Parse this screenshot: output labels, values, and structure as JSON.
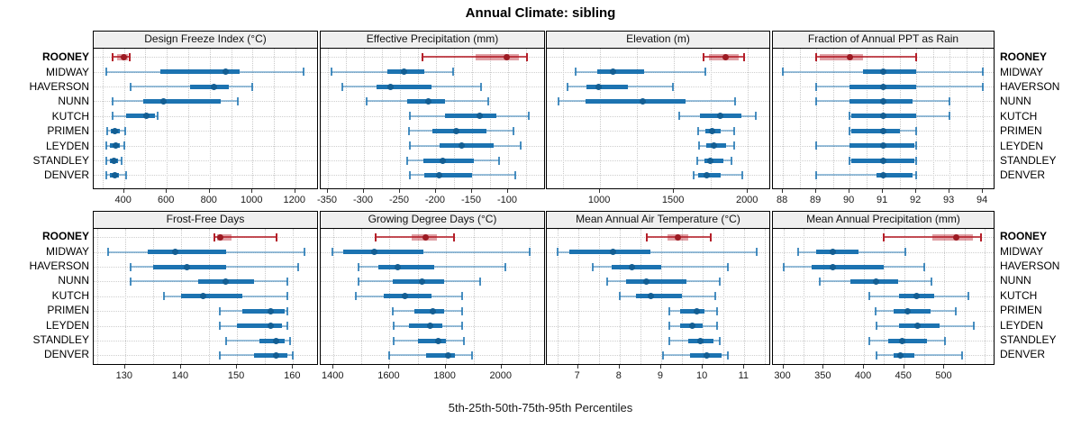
{
  "title": "Annual Climate: sibling",
  "caption": "5th-25th-50th-75th-95th Percentiles",
  "stations": [
    "ROONEY",
    "MIDWAY",
    "HAVERSON",
    "NUNN",
    "KUTCH",
    "PRIMEN",
    "LEYDEN",
    "STANDLEY",
    "DENVER"
  ],
  "highlight_station": "ROONEY",
  "percentiles": [
    5,
    25,
    50,
    75,
    95
  ],
  "colors": {
    "highlight": "#b5202a",
    "highlight_dot": "#9c1b23",
    "normal": "#1c73b1",
    "normal_dot": "#135e93",
    "grid": "#c9c9c9",
    "strip_bg": "#efefef",
    "border": "#000000"
  },
  "chart_data": [
    {
      "type": "percentile-range",
      "title": "Design Freeze Index (°C)",
      "domain": [
        258,
        1302
      ],
      "ticks": [
        400,
        600,
        800,
        1000,
        1200
      ],
      "minor_step": 100,
      "series": [
        {
          "name": "ROONEY",
          "values": [
            345,
            368,
            400,
            416,
            426
          ]
        },
        {
          "name": "MIDWAY",
          "values": [
            315,
            570,
            875,
            940,
            1240
          ]
        },
        {
          "name": "HAVERSON",
          "values": [
            430,
            710,
            820,
            890,
            1000
          ]
        },
        {
          "name": "NUNN",
          "values": [
            345,
            490,
            585,
            850,
            930
          ]
        },
        {
          "name": "KUTCH",
          "values": [
            345,
            410,
            505,
            545,
            555
          ]
        },
        {
          "name": "PRIMEN",
          "values": [
            320,
            336,
            358,
            380,
            407
          ]
        },
        {
          "name": "LEYDEN",
          "values": [
            315,
            335,
            360,
            381,
            403
          ]
        },
        {
          "name": "STANDLEY",
          "values": [
            318,
            332,
            354,
            372,
            390
          ]
        },
        {
          "name": "DENVER",
          "values": [
            316,
            335,
            357,
            378,
            410
          ]
        }
      ]
    },
    {
      "type": "percentile-range",
      "title": "Effective Precipitation (mm)",
      "domain": [
        -360,
        -50
      ],
      "ticks": [
        -350,
        -300,
        -250,
        -200,
        -150,
        -100
      ],
      "minor_step": 25,
      "series": [
        {
          "name": "ROONEY",
          "values": [
            -219,
            -145,
            -102,
            -85,
            -74
          ]
        },
        {
          "name": "MIDWAY",
          "values": [
            -345,
            -268,
            -245,
            -216,
            -176
          ]
        },
        {
          "name": "HAVERSON",
          "values": [
            -330,
            -283,
            -263,
            -206,
            -137
          ]
        },
        {
          "name": "NUNN",
          "values": [
            -296,
            -240,
            -211,
            -188,
            -127
          ]
        },
        {
          "name": "KUTCH",
          "values": [
            -236,
            -187,
            -140,
            -116,
            -71
          ]
        },
        {
          "name": "PRIMEN",
          "values": [
            -238,
            -205,
            -172,
            -130,
            -92
          ]
        },
        {
          "name": "LEYDEN",
          "values": [
            -236,
            -195,
            -165,
            -120,
            -82
          ]
        },
        {
          "name": "STANDLEY",
          "values": [
            -240,
            -218,
            -191,
            -148,
            -112
          ]
        },
        {
          "name": "DENVER",
          "values": [
            -236,
            -216,
            -196,
            -150,
            -90
          ]
        }
      ]
    },
    {
      "type": "percentile-range",
      "title": "Elevation (m)",
      "domain": [
        640,
        2145
      ],
      "ticks": [
        1000,
        1500,
        2000
      ],
      "minor_step": 250,
      "series": [
        {
          "name": "ROONEY",
          "values": [
            1700,
            1737,
            1850,
            1935,
            1977
          ]
        },
        {
          "name": "MIDWAY",
          "values": [
            835,
            980,
            1085,
            1300,
            1710
          ]
        },
        {
          "name": "HAVERSON",
          "values": [
            780,
            910,
            990,
            1190,
            1495
          ]
        },
        {
          "name": "NUNN",
          "values": [
            720,
            900,
            1290,
            1580,
            1915
          ]
        },
        {
          "name": "KUTCH",
          "values": [
            1535,
            1675,
            1815,
            1955,
            2055
          ]
        },
        {
          "name": "PRIMEN",
          "values": [
            1665,
            1715,
            1760,
            1815,
            1905
          ]
        },
        {
          "name": "LEYDEN",
          "values": [
            1670,
            1720,
            1770,
            1855,
            1910
          ]
        },
        {
          "name": "STANDLEY",
          "values": [
            1660,
            1705,
            1745,
            1835,
            1890
          ]
        },
        {
          "name": "DENVER",
          "values": [
            1634,
            1664,
            1724,
            1814,
            1960
          ]
        }
      ]
    },
    {
      "type": "percentile-range",
      "title": "Fraction of Annual PPT as Rain",
      "domain": [
        87.7,
        94.32
      ],
      "ticks": [
        88,
        89,
        90,
        91,
        92,
        93,
        94
      ],
      "minor_step": 0.5,
      "series": [
        {
          "name": "ROONEY",
          "values": [
            89,
            89.1,
            90,
            90.4,
            92
          ]
        },
        {
          "name": "MIDWAY",
          "values": [
            88,
            90.4,
            91,
            92,
            94
          ]
        },
        {
          "name": "HAVERSON",
          "values": [
            89,
            90,
            91,
            92,
            94
          ]
        },
        {
          "name": "NUNN",
          "values": [
            89,
            90,
            91,
            91.9,
            93
          ]
        },
        {
          "name": "KUTCH",
          "values": [
            90,
            90.05,
            91,
            92,
            93
          ]
        },
        {
          "name": "PRIMEN",
          "values": [
            90,
            90.05,
            91,
            91.5,
            92
          ]
        },
        {
          "name": "LEYDEN",
          "values": [
            89,
            90,
            91,
            91.95,
            92
          ]
        },
        {
          "name": "STANDLEY",
          "values": [
            90,
            90.05,
            91,
            91.95,
            92
          ]
        },
        {
          "name": "DENVER",
          "values": [
            89,
            90.8,
            91,
            91.9,
            92
          ]
        }
      ]
    },
    {
      "type": "percentile-range",
      "title": "Frost-Free Days",
      "domain": [
        124.4,
        164.3
      ],
      "ticks": [
        130,
        140,
        150,
        160
      ],
      "minor_step": 5,
      "series": [
        {
          "name": "ROONEY",
          "values": [
            146,
            146.5,
            147,
            149,
            157
          ]
        },
        {
          "name": "MIDWAY",
          "values": [
            127,
            134,
            139,
            148,
            162
          ]
        },
        {
          "name": "HAVERSON",
          "values": [
            131,
            135,
            141,
            148,
            161
          ]
        },
        {
          "name": "NUNN",
          "values": [
            131,
            143,
            148,
            153,
            159
          ]
        },
        {
          "name": "KUTCH",
          "values": [
            137,
            140,
            144,
            151,
            159
          ]
        },
        {
          "name": "PRIMEN",
          "values": [
            147,
            151,
            156,
            158.5,
            159
          ]
        },
        {
          "name": "LEYDEN",
          "values": [
            147,
            150,
            156,
            158,
            159
          ]
        },
        {
          "name": "STANDLEY",
          "values": [
            148,
            154,
            157,
            158.5,
            159.5
          ]
        },
        {
          "name": "DENVER",
          "values": [
            147,
            153,
            157,
            159,
            160
          ]
        }
      ]
    },
    {
      "type": "percentile-range",
      "title": "Growing Degree Days (°C)",
      "domain": [
        1354,
        2152
      ],
      "ticks": [
        1400,
        1600,
        1800,
        2000
      ],
      "minor_step": 100,
      "series": [
        {
          "name": "ROONEY",
          "values": [
            1550,
            1680,
            1730,
            1770,
            1830
          ]
        },
        {
          "name": "MIDWAY",
          "values": [
            1395,
            1435,
            1545,
            1720,
            2100
          ]
        },
        {
          "name": "HAVERSON",
          "values": [
            1490,
            1560,
            1630,
            1760,
            2015
          ]
        },
        {
          "name": "NUNN",
          "values": [
            1490,
            1610,
            1715,
            1795,
            1925
          ]
        },
        {
          "name": "KUTCH",
          "values": [
            1480,
            1580,
            1655,
            1750,
            1860
          ]
        },
        {
          "name": "PRIMEN",
          "values": [
            1610,
            1690,
            1755,
            1795,
            1860
          ]
        },
        {
          "name": "LEYDEN",
          "values": [
            1615,
            1670,
            1745,
            1790,
            1860
          ]
        },
        {
          "name": "STANDLEY",
          "values": [
            1615,
            1700,
            1775,
            1800,
            1865
          ]
        },
        {
          "name": "DENVER",
          "values": [
            1600,
            1730,
            1808,
            1835,
            1895
          ]
        }
      ]
    },
    {
      "type": "percentile-range",
      "title": "Mean Annual Air Temperature (°C)",
      "domain": [
        6.25,
        11.6
      ],
      "ticks": [
        7,
        8,
        9,
        10,
        11
      ],
      "minor_step": 0.5,
      "series": [
        {
          "name": "ROONEY",
          "values": [
            8.65,
            9.15,
            9.4,
            9.65,
            10.2
          ]
        },
        {
          "name": "MIDWAY",
          "values": [
            6.5,
            6.8,
            7.85,
            8.75,
            11.3
          ]
        },
        {
          "name": "HAVERSON",
          "values": [
            7.35,
            7.8,
            8.3,
            9.0,
            10.6
          ]
        },
        {
          "name": "NUNN",
          "values": [
            7.7,
            8.15,
            8.65,
            9.6,
            10.4
          ]
        },
        {
          "name": "KUTCH",
          "values": [
            8.0,
            8.4,
            8.75,
            9.5,
            10.3
          ]
        },
        {
          "name": "PRIMEN",
          "values": [
            9.2,
            9.45,
            9.85,
            10.05,
            10.35
          ]
        },
        {
          "name": "LEYDEN",
          "values": [
            9.2,
            9.45,
            9.75,
            10.0,
            10.35
          ]
        },
        {
          "name": "STANDLEY",
          "values": [
            9.2,
            9.65,
            9.95,
            10.25,
            10.4
          ]
        },
        {
          "name": "DENVER",
          "values": [
            9.05,
            9.7,
            10.1,
            10.45,
            10.6
          ]
        }
      ]
    },
    {
      "type": "percentile-range",
      "title": "Mean Annual Precipitation (mm)",
      "domain": [
        287,
        561
      ],
      "ticks": [
        300,
        350,
        400,
        450,
        500
      ],
      "minor_step": 25,
      "series": [
        {
          "name": "ROONEY",
          "values": [
            425,
            485,
            515,
            535,
            545
          ]
        },
        {
          "name": "MIDWAY",
          "values": [
            318,
            341,
            361,
            393,
            451
          ]
        },
        {
          "name": "HAVERSON",
          "values": [
            300,
            335,
            361,
            425,
            475
          ]
        },
        {
          "name": "NUNN",
          "values": [
            345,
            383,
            415,
            443,
            484
          ]
        },
        {
          "name": "KUTCH",
          "values": [
            407,
            444,
            465,
            487,
            530
          ]
        },
        {
          "name": "PRIMEN",
          "values": [
            415,
            437,
            454,
            483,
            514
          ]
        },
        {
          "name": "LEYDEN",
          "values": [
            416,
            444,
            467,
            494,
            536
          ]
        },
        {
          "name": "STANDLEY",
          "values": [
            407,
            430,
            447,
            478,
            501
          ]
        },
        {
          "name": "DENVER",
          "values": [
            416,
            437,
            445,
            463,
            522
          ]
        }
      ]
    }
  ]
}
